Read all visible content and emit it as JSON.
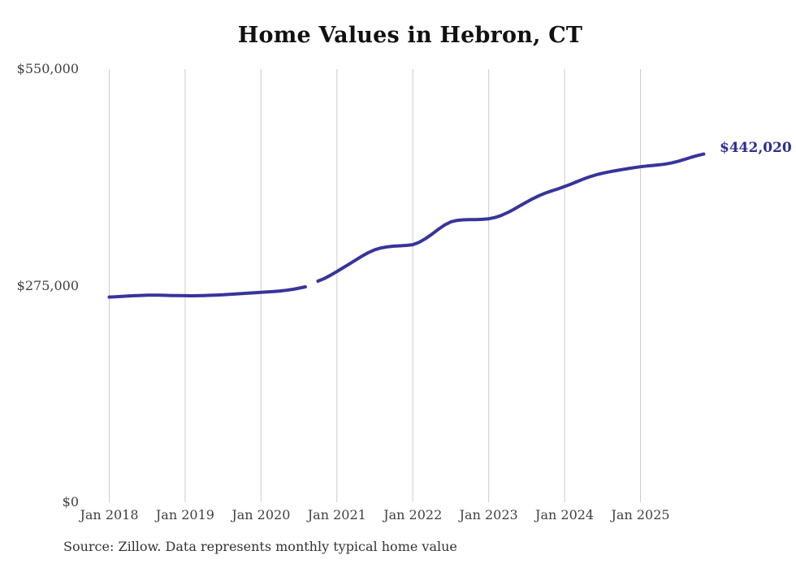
{
  "title": "Home Values in Hebron, CT",
  "source_note": "Source: Zillow. Data represents monthly typical home value",
  "colors": {
    "line": "#37349b",
    "final_label": "#2f2d8e",
    "gridline": "#cccccc",
    "title": "#111111",
    "axis_label": "#404040",
    "source": "#333333",
    "background": "#ffffff"
  },
  "chart_data": {
    "type": "line",
    "title": "Home Values in Hebron, CT",
    "series_name": "Monthly typical home value (USD)",
    "xlabel": "",
    "ylabel": "",
    "ylim": [
      0,
      550000
    ],
    "grid": "vertical-only",
    "legend": "none",
    "final_value": 442020,
    "final_value_label": "$442,020",
    "gap_months": [
      "2020-09"
    ],
    "y_ticks": [
      {
        "value": 0,
        "label": "$0"
      },
      {
        "value": 275000,
        "label": "$275,000"
      },
      {
        "value": 550000,
        "label": "$550,000"
      }
    ],
    "x_ticks": [
      {
        "label": "Jan 2018",
        "month_index": 0
      },
      {
        "label": "Jan 2019",
        "month_index": 12
      },
      {
        "label": "Jan 2020",
        "month_index": 24
      },
      {
        "label": "Jan 2021",
        "month_index": 36
      },
      {
        "label": "Jan 2022",
        "month_index": 48
      },
      {
        "label": "Jan 2023",
        "month_index": 60
      },
      {
        "label": "Jan 2024",
        "month_index": 72
      },
      {
        "label": "Jan 2025",
        "month_index": 84
      }
    ],
    "x": [
      "2018-01",
      "2018-02",
      "2018-03",
      "2018-04",
      "2018-05",
      "2018-06",
      "2018-07",
      "2018-08",
      "2018-09",
      "2018-10",
      "2018-11",
      "2018-12",
      "2019-01",
      "2019-02",
      "2019-03",
      "2019-04",
      "2019-05",
      "2019-06",
      "2019-07",
      "2019-08",
      "2019-09",
      "2019-10",
      "2019-11",
      "2019-12",
      "2020-01",
      "2020-02",
      "2020-03",
      "2020-04",
      "2020-05",
      "2020-06",
      "2020-07",
      "2020-08",
      "2020-09",
      "2020-10",
      "2020-11",
      "2020-12",
      "2021-01",
      "2021-02",
      "2021-03",
      "2021-04",
      "2021-05",
      "2021-06",
      "2021-07",
      "2021-08",
      "2021-09",
      "2021-10",
      "2021-11",
      "2021-12",
      "2022-01",
      "2022-02",
      "2022-03",
      "2022-04",
      "2022-05",
      "2022-06",
      "2022-07",
      "2022-08",
      "2022-09",
      "2022-10",
      "2022-11",
      "2022-12",
      "2023-01",
      "2023-02",
      "2023-03",
      "2023-04",
      "2023-05",
      "2023-06",
      "2023-07",
      "2023-08",
      "2023-09",
      "2023-10",
      "2023-11",
      "2023-12",
      "2024-01",
      "2024-02",
      "2024-03",
      "2024-04",
      "2024-05",
      "2024-06",
      "2024-07",
      "2024-08",
      "2024-09",
      "2024-10",
      "2024-11",
      "2024-12",
      "2025-01",
      "2025-02",
      "2025-03",
      "2025-04",
      "2025-05",
      "2025-06",
      "2025-07",
      "2025-08",
      "2025-09",
      "2025-10",
      "2025-11"
    ],
    "values": [
      260500,
      260900,
      261300,
      261800,
      262200,
      262500,
      262800,
      262900,
      262800,
      262600,
      262400,
      262300,
      262200,
      262100,
      262200,
      262400,
      262700,
      263000,
      263400,
      263900,
      264400,
      264900,
      265400,
      265900,
      266400,
      266900,
      267500,
      268200,
      269100,
      270300,
      271800,
      273500,
      null,
      280700,
      284000,
      288200,
      293000,
      297800,
      302700,
      307700,
      312600,
      317000,
      320600,
      322900,
      324300,
      325100,
      325600,
      326100,
      327000,
      330000,
      334600,
      340200,
      346300,
      351900,
      355900,
      357900,
      358600,
      358800,
      358900,
      359200,
      359900,
      361500,
      364200,
      367800,
      372000,
      376600,
      381200,
      385500,
      389300,
      392600,
      395400,
      397900,
      400900,
      403900,
      407200,
      410400,
      413300,
      415700,
      417700,
      419400,
      420900,
      422300,
      423600,
      424800,
      426000,
      426900,
      427600,
      428400,
      429500,
      431000,
      433000,
      435400,
      437900,
      440200,
      442020
    ]
  }
}
